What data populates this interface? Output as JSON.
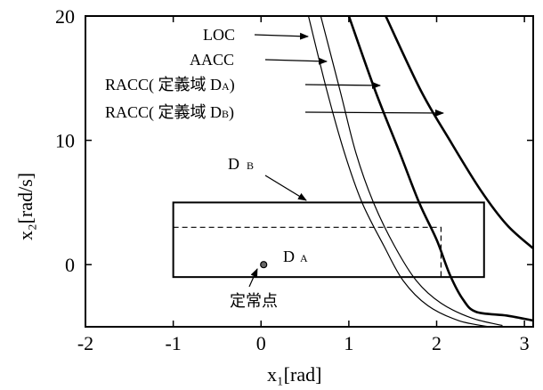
{
  "chart_data": {
    "type": "line",
    "xlabel": "x₁[rad]",
    "ylabel": "x₂[rad/s]",
    "xlim": [
      -2,
      3.1
    ],
    "ylim": [
      -5,
      20
    ],
    "xticks": [
      "-2",
      "-1",
      "0",
      "1",
      "2",
      "3"
    ],
    "yticks": [
      "0",
      "10",
      "20"
    ],
    "series": [
      {
        "name": "LOC",
        "points": [
          [
            0.54,
            20
          ],
          [
            0.75,
            14
          ],
          [
            0.95,
            9
          ],
          [
            1.15,
            5
          ],
          [
            1.4,
            1.5
          ],
          [
            1.62,
            -1.3
          ],
          [
            1.9,
            -3.3
          ],
          [
            2.25,
            -4.5
          ],
          [
            2.6,
            -5
          ]
        ]
      },
      {
        "name": "AACC",
        "points": [
          [
            0.68,
            20
          ],
          [
            0.9,
            14
          ],
          [
            1.08,
            9
          ],
          [
            1.28,
            5
          ],
          [
            1.52,
            1.5
          ],
          [
            1.77,
            -1.3
          ],
          [
            2.05,
            -3.1
          ],
          [
            2.4,
            -4.3
          ],
          [
            2.75,
            -4.9
          ]
        ]
      },
      {
        "name": "RACC( 定義域 DA)",
        "points": [
          [
            1.0,
            20
          ],
          [
            1.3,
            14
          ],
          [
            1.58,
            9
          ],
          [
            1.8,
            5
          ],
          [
            2.0,
            2
          ],
          [
            2.15,
            -0.8
          ],
          [
            2.3,
            -2.8
          ],
          [
            2.45,
            -3.8
          ],
          [
            2.8,
            -4.1
          ],
          [
            3.1,
            -4.5
          ]
        ]
      },
      {
        "name": "RACC( 定義域 DB)",
        "points": [
          [
            1.42,
            20
          ],
          [
            1.82,
            14
          ],
          [
            2.15,
            10
          ],
          [
            2.5,
            6
          ],
          [
            2.8,
            3.2
          ],
          [
            3.1,
            1.3
          ]
        ]
      }
    ],
    "regions": [
      {
        "name": "D B",
        "x": [
          -1,
          2.54
        ],
        "y": [
          -1,
          5
        ],
        "style": "solid"
      },
      {
        "name": "D A",
        "x": [
          -1,
          2.05
        ],
        "y": [
          -1,
          3
        ],
        "style": "dashed"
      }
    ],
    "equilibrium": {
      "label": "定常点",
      "x": 0.03,
      "y": 0
    },
    "annotations": {
      "loc": "LOC",
      "aacc": "AACC",
      "racc_a_pre": "RACC( 定義域 D",
      "racc_a_sub": "A",
      "racc_b_pre": "RACC( 定義域 D",
      "racc_b_sub": "B",
      "close_paren": ")",
      "db_main": "D",
      "db_sub": "B",
      "da_main": "D",
      "da_sub": "A"
    }
  }
}
